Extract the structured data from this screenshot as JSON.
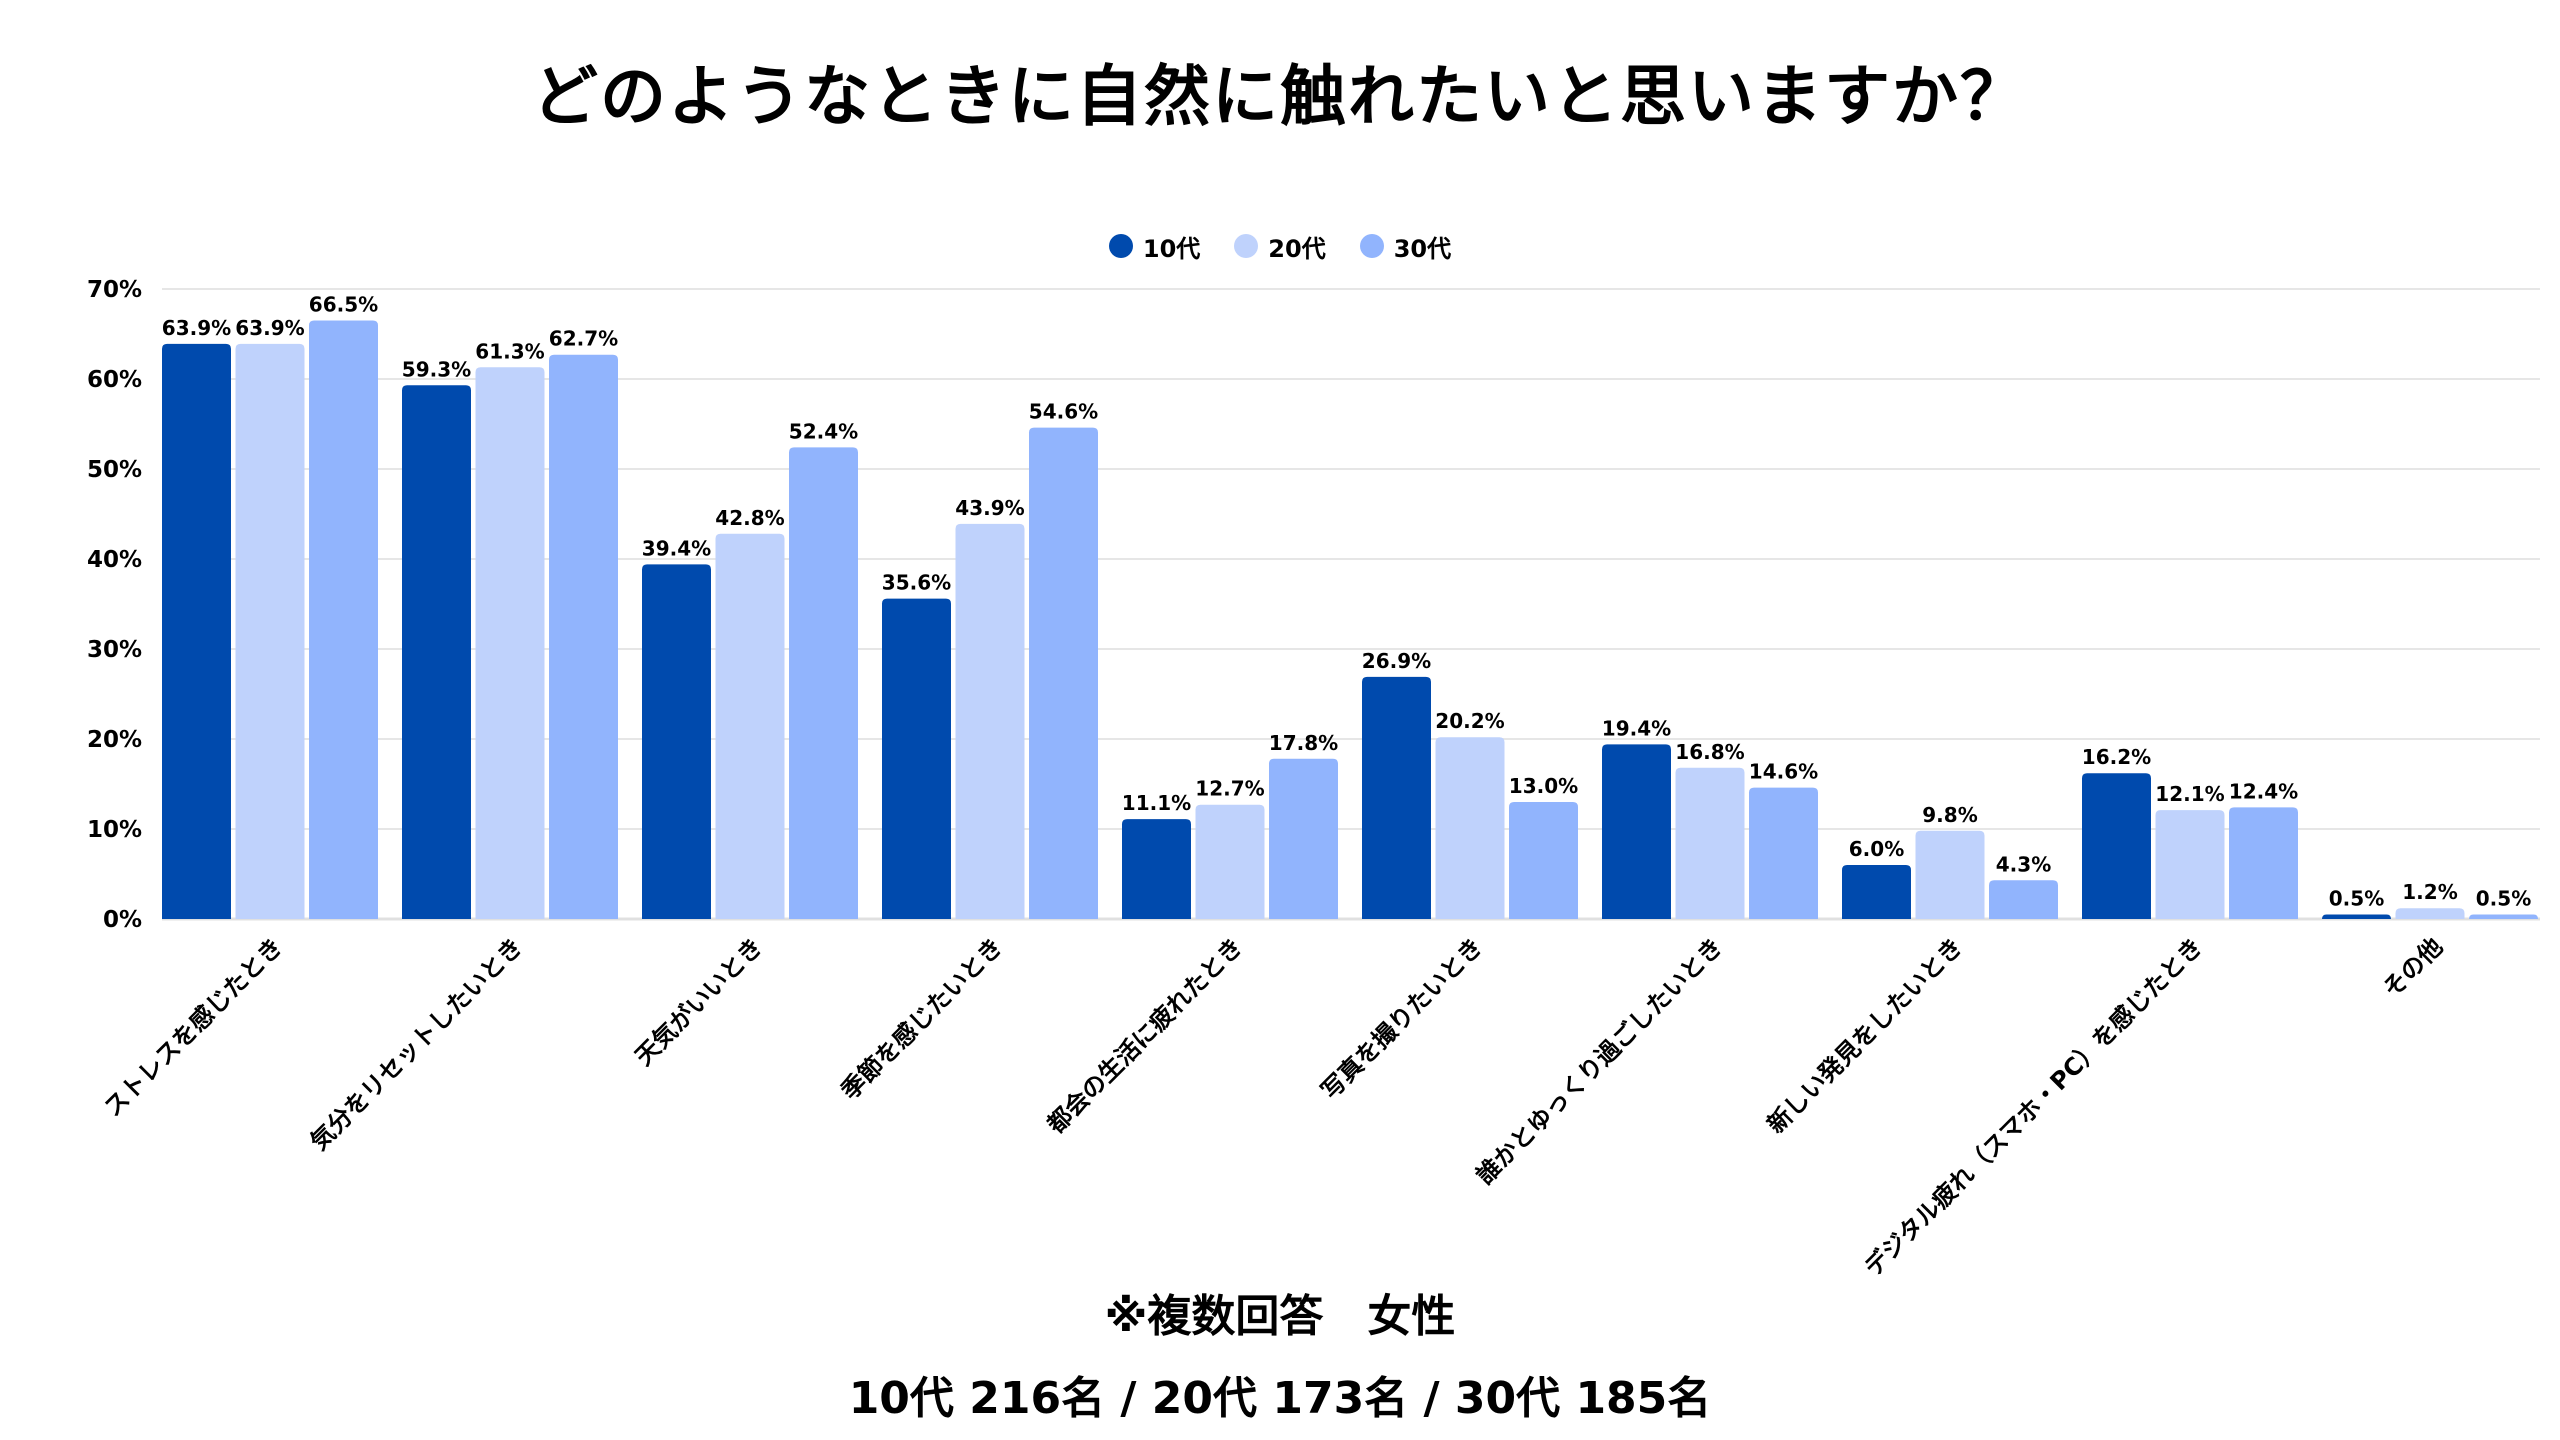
{
  "chart_data": {
    "type": "bar",
    "title": "どのようなときに自然に触れたいと思いますか？",
    "xlabel": "",
    "ylabel": "",
    "ylim": [
      0,
      70
    ],
    "yticks": [
      "0%",
      "10%",
      "20%",
      "30%",
      "40%",
      "50%",
      "60%",
      "70%"
    ],
    "ytick_values": [
      0,
      10,
      20,
      30,
      40,
      50,
      60,
      70
    ],
    "grid": true,
    "legend_position": "top-center",
    "categories": [
      "ストレスを感じたとき",
      "気分をリセットしたいとき",
      "天気がいいとき",
      "季節を感じたいとき",
      "都会の生活に疲れたとき",
      "写真を撮りたいとき",
      "誰かとゆっくり過ごしたいとき",
      "新しい発見をしたいとき",
      "デジタル疲れ（スマホ・PC）を感じたとき",
      "その他"
    ],
    "series": [
      {
        "name": "10代",
        "color": "#004AAD",
        "values": [
          63.9,
          59.3,
          39.4,
          35.6,
          11.1,
          26.9,
          19.4,
          6.0,
          16.2,
          0.5
        ],
        "labels": [
          "63.9%",
          "59.3%",
          "39.4%",
          "35.6%",
          "11.1%",
          "26.9%",
          "19.4%",
          "6.0%",
          "16.2%",
          "0.5%"
        ]
      },
      {
        "name": "20代",
        "color": "#BFD2FC",
        "values": [
          63.9,
          61.3,
          42.8,
          43.9,
          12.7,
          20.2,
          16.8,
          9.8,
          12.1,
          1.2
        ],
        "labels": [
          "63.9%",
          "61.3%",
          "42.8%",
          "43.9%",
          "12.7%",
          "20.2%",
          "16.8%",
          "9.8%",
          "12.1%",
          "1.2%"
        ]
      },
      {
        "name": "30代",
        "color": "#91B4FD",
        "values": [
          66.5,
          62.7,
          52.4,
          54.6,
          17.8,
          13.0,
          14.6,
          4.3,
          12.4,
          0.5
        ],
        "labels": [
          "66.5%",
          "62.7%",
          "52.4%",
          "54.6%",
          "17.8%",
          "13.0%",
          "14.6%",
          "4.3%",
          "12.4%",
          "0.5%"
        ]
      }
    ]
  },
  "footer": {
    "note": "※複数回答　女性",
    "sample": "10代 216名 / 20代 173名 / 30代 185名"
  },
  "colors": {
    "gridline": "#E6E6E6",
    "text": "#000000"
  }
}
